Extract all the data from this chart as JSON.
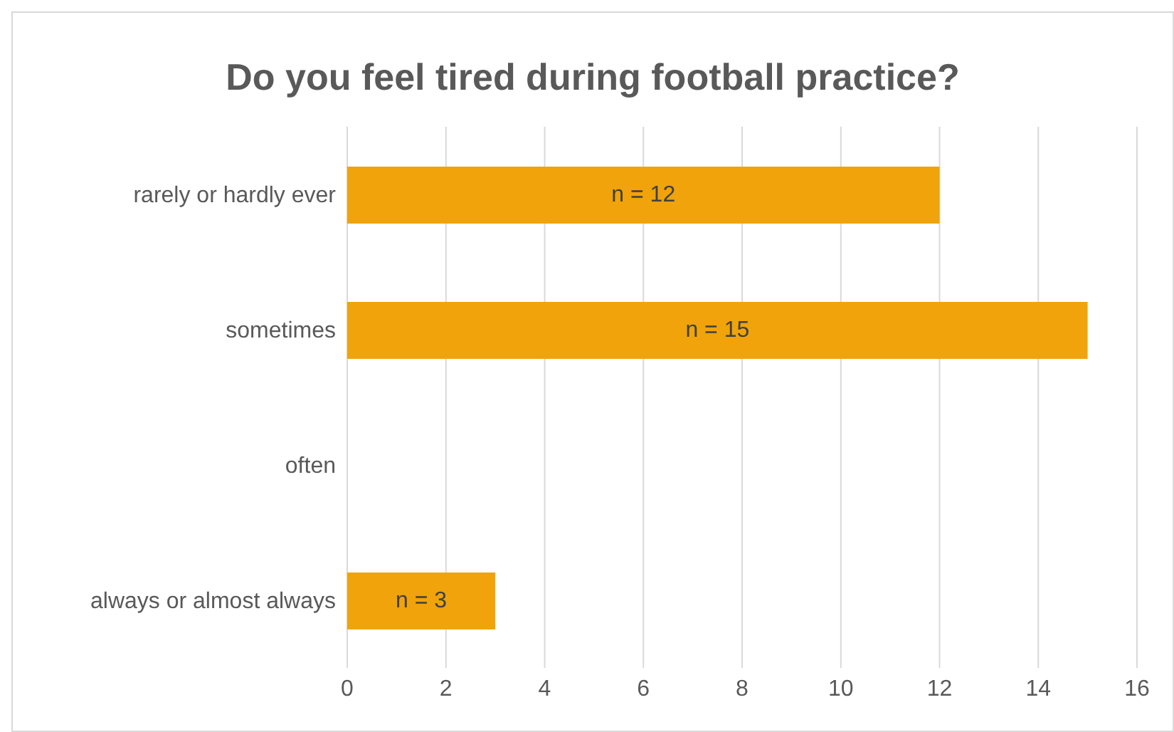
{
  "chart_data": {
    "type": "bar",
    "orientation": "horizontal",
    "title": "Do you feel tired during football practice?",
    "categories": [
      "rarely or hardly ever",
      "sometimes",
      "often",
      "always or almost always"
    ],
    "values": [
      12,
      15,
      0,
      3
    ],
    "value_labels": [
      "n = 12",
      "n = 15",
      null,
      "n = 3"
    ],
    "color": "#f0a30a",
    "xlim": [
      0,
      16
    ],
    "xticks": [
      0,
      2,
      4,
      6,
      8,
      10,
      12,
      14,
      16
    ],
    "grid": "x"
  }
}
